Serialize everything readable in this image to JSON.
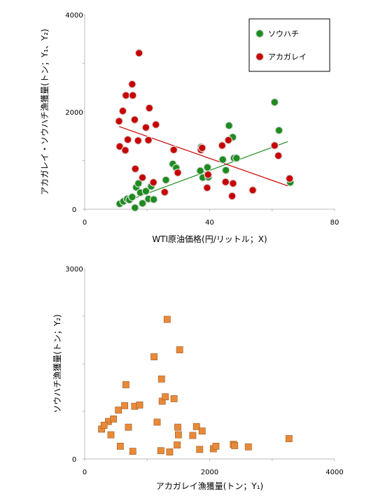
{
  "chart_data": [
    {
      "type": "scatter",
      "xlabel": "WTI原油価格(円/リットル；X)",
      "ylabel": "アカガレイ・ソウハチ漁獲量(トン；Y₁、Y₂)",
      "xlim": [
        0,
        80
      ],
      "ylim": [
        0,
        4000
      ],
      "xticks": [
        "0",
        "40",
        "80"
      ],
      "yticks": [
        "0",
        "2000",
        "4000"
      ],
      "grid": false,
      "legend_position": "top-right",
      "series": [
        {
          "name": "ソウハチ",
          "color": "#1e8c1e",
          "marker": "circle",
          "x": [
            11.2,
            12.4,
            13.6,
            14.3,
            15.2,
            16.1,
            16.5,
            17.2,
            17.8,
            18.5,
            19.6,
            20.4,
            21.3,
            22.1,
            26.0,
            28.2,
            29.3,
            37.0,
            37.3,
            37.8,
            39.3,
            39.6,
            44.2,
            45.2,
            46.2,
            47.4,
            47.8,
            48.6,
            60.8,
            62.2,
            65.8
          ],
          "y": [
            110,
            160,
            210,
            190,
            250,
            30,
            450,
            530,
            340,
            120,
            370,
            210,
            470,
            200,
            600,
            930,
            850,
            790,
            1280,
            650,
            860,
            660,
            1020,
            800,
            1720,
            1480,
            1050,
            1050,
            2200,
            1620,
            550
          ],
          "trend": {
            "x": [
              11,
              65
            ],
            "y": [
              110,
              1390
            ]
          }
        },
        {
          "name": "アカガレイ",
          "color": "#c80000",
          "marker": "circle",
          "x": [
            11.0,
            11.2,
            12.2,
            13.0,
            13.2,
            13.8,
            15.2,
            15.4,
            16.0,
            16.2,
            17.1,
            17.4,
            18.5,
            19.6,
            20.4,
            20.7,
            22.0,
            22.8,
            25.6,
            28.5,
            29.8,
            37.2,
            37.6,
            39.2,
            39.5,
            44.0,
            45.1,
            46.0,
            47.2,
            47.5,
            53.8,
            60.8,
            62.0,
            65.6
          ],
          "y": [
            1810,
            1290,
            2020,
            1210,
            2340,
            1430,
            2570,
            2340,
            1840,
            830,
            1410,
            3210,
            650,
            1680,
            1420,
            2080,
            550,
            1740,
            350,
            1220,
            750,
            1220,
            1260,
            440,
            710,
            1310,
            560,
            1420,
            270,
            530,
            390,
            1310,
            1100,
            630
          ],
          "trend": {
            "x": [
              11,
              65
            ],
            "y": [
              1700,
              480
            ]
          }
        }
      ]
    },
    {
      "type": "scatter",
      "xlabel": "アカガレイ漁獲量(トン；Y₁)",
      "ylabel": "ソウハチ漁獲量(トン；Y₂)",
      "xlim": [
        0,
        4000
      ],
      "ylim": [
        0,
        3000
      ],
      "xticks": [
        "0",
        "2000",
        "4000"
      ],
      "yticks": [
        "0",
        "3000"
      ],
      "grid": false,
      "series": [
        {
          "color": "#e98a3a",
          "marker": "square",
          "x": [
            270,
            380,
            310,
            420,
            460,
            540,
            570,
            640,
            660,
            700,
            770,
            800,
            880,
            1110,
            1160,
            1220,
            1230,
            1240,
            1290,
            1320,
            1360,
            1430,
            1480,
            1490,
            1500,
            1520,
            1730,
            1790,
            1840,
            1880,
            2060,
            2100,
            2380,
            2400,
            2620,
            3270
          ],
          "y": [
            470,
            590,
            530,
            380,
            630,
            770,
            200,
            840,
            1170,
            500,
            120,
            830,
            850,
            1610,
            580,
            130,
            1260,
            910,
            980,
            2200,
            110,
            950,
            220,
            500,
            380,
            1720,
            370,
            510,
            150,
            440,
            160,
            200,
            230,
            210,
            190,
            320
          ]
        }
      ]
    }
  ]
}
